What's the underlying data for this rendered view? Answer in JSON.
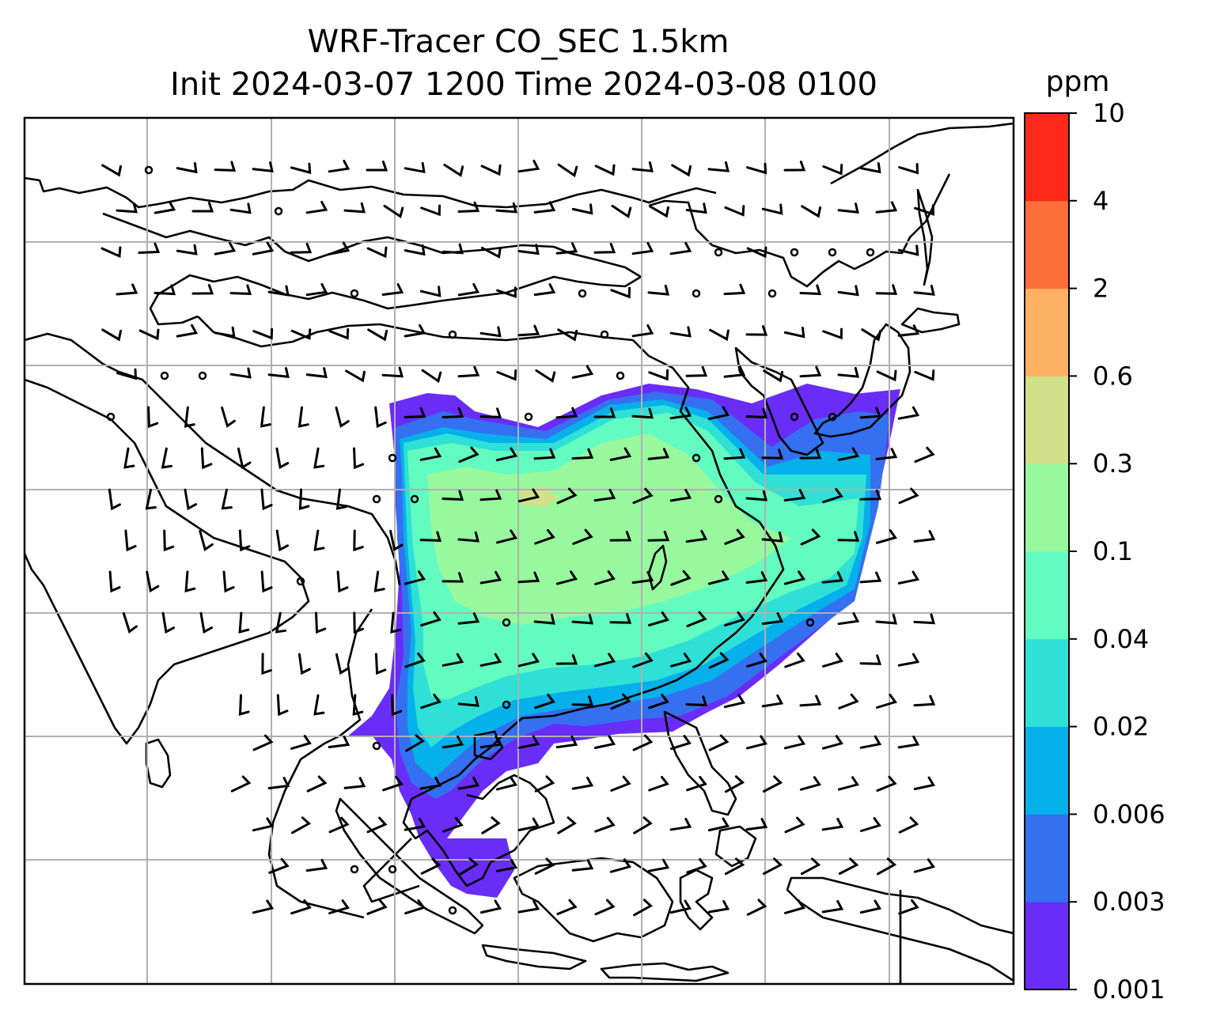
{
  "title": {
    "line1": "WRF-Tracer CO_SEC 1.5km",
    "line2": "Init 2024-03-07 1200 Time 2024-03-08 0100"
  },
  "colorbar": {
    "unit": "ppm",
    "levels": [
      "0.001",
      "0.003",
      "0.006",
      "0.02",
      "0.04",
      "0.1",
      "0.3",
      "0.6",
      "2",
      "4",
      "10"
    ],
    "colors": [
      "#6a2cf7",
      "#3470f0",
      "#06b0ea",
      "#2ee0d6",
      "#62fbc0",
      "#98f89e",
      "#d2e089",
      "#fcb163",
      "#ff6f3c",
      "#fe2a19"
    ]
  },
  "map": {
    "gridlines": true,
    "field": "CO_SEC tracer concentration",
    "overlay": "wind barbs"
  }
}
